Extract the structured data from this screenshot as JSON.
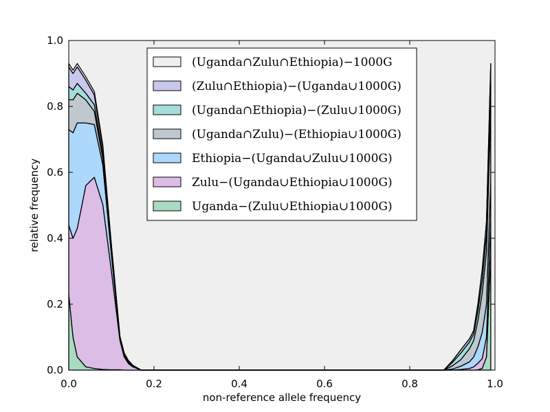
{
  "chart_data": {
    "type": "area",
    "stacked": true,
    "xlabel": "non-reference allele frequency",
    "ylabel": "relative frequency",
    "xlim": [
      0.0,
      1.0
    ],
    "ylim": [
      0.0,
      1.0
    ],
    "xticks": [
      "0.0",
      "0.2",
      "0.4",
      "0.6",
      "0.8",
      "1.0"
    ],
    "yticks": [
      "0.0",
      "0.2",
      "0.4",
      "0.6",
      "0.8",
      "1.0"
    ],
    "grid": false,
    "legend_position": "top-center",
    "background_color": "#efefef",
    "x": [
      0.0,
      0.01,
      0.02,
      0.04,
      0.06,
      0.08,
      0.1,
      0.12,
      0.13,
      0.14,
      0.15,
      0.17,
      0.2,
      0.3,
      0.4,
      0.6,
      0.8,
      0.85,
      0.88,
      0.9,
      0.92,
      0.94,
      0.95,
      0.96,
      0.97,
      0.98,
      0.99
    ],
    "series": [
      {
        "name": "Uganda−(Zulu∪Ethiopia∪1000G)",
        "color": "#a8dbbf",
        "values": [
          0.23,
          0.1,
          0.04,
          0.01,
          0.005,
          0.002,
          0.001,
          0.001,
          0.0,
          0.0,
          0.0,
          0.0,
          0.0,
          0.0,
          0.0,
          0.0,
          0.0,
          0.0,
          0.0,
          0.0,
          0.0,
          0.0,
          0.0,
          0.001,
          0.005,
          0.04,
          0.35
        ]
      },
      {
        "name": "Zulu−(Uganda∪Ethiopia∪1000G)",
        "color": "#dcbde6",
        "values": [
          0.21,
          0.3,
          0.39,
          0.55,
          0.58,
          0.5,
          0.3,
          0.09,
          0.04,
          0.02,
          0.01,
          0.0,
          0.0,
          0.0,
          0.0,
          0.0,
          0.0,
          0.0,
          0.0,
          0.0,
          0.002,
          0.005,
          0.01,
          0.02,
          0.03,
          0.06,
          0.1
        ]
      },
      {
        "name": "Ethiopia−(Uganda∪Zulu∪1000G)",
        "color": "#acd8fc",
        "values": [
          0.29,
          0.32,
          0.32,
          0.19,
          0.16,
          0.12,
          0.05,
          0.006,
          0.005,
          0.002,
          0.001,
          0.0,
          0.0,
          0.0,
          0.0,
          0.0,
          0.0,
          0.0,
          0.0,
          0.003,
          0.01,
          0.02,
          0.03,
          0.05,
          0.08,
          0.1,
          0.12
        ]
      },
      {
        "name": "(Uganda∩Zulu)−(Ethiopia∪1000G)",
        "color": "#c0c8cf",
        "values": [
          0.09,
          0.1,
          0.09,
          0.07,
          0.04,
          0.02,
          0.01,
          0.002,
          0.003,
          0.003,
          0.002,
          0.0,
          0.0,
          0.0,
          0.0,
          0.0,
          0.0,
          0.0,
          0.0,
          0.01,
          0.02,
          0.04,
          0.05,
          0.08,
          0.12,
          0.16,
          0.22
        ]
      },
      {
        "name": "(Uganda∩Ethiopia)−(Zulu∪1000G)",
        "color": "#a4dcdc",
        "values": [
          0.04,
          0.03,
          0.03,
          0.02,
          0.02,
          0.01,
          0.01,
          0.002,
          0.002,
          0.002,
          0.001,
          0.0,
          0.0,
          0.0,
          0.0,
          0.0,
          0.0,
          0.0,
          0.0,
          0.01,
          0.02,
          0.02,
          0.02,
          0.03,
          0.04,
          0.05,
          0.08
        ]
      },
      {
        "name": "(Zulu∩Ethiopia)−(Uganda∪1000G)",
        "color": "#c8c8ec",
        "values": [
          0.06,
          0.05,
          0.05,
          0.04,
          0.03,
          0.02,
          0.01,
          0.002,
          0.002,
          0.002,
          0.001,
          0.0,
          0.0,
          0.0,
          0.0,
          0.0,
          0.0,
          0.0,
          0.0,
          0.005,
          0.01,
          0.01,
          0.01,
          0.02,
          0.03,
          0.04,
          0.06
        ]
      },
      {
        "name": "(Uganda∩Zulu∩Ethiopia)−1000G",
        "color": "#efefef",
        "values": [
          0.01,
          0.01,
          0.01,
          0.01,
          0.01,
          0.01,
          0.0,
          0.0,
          0.0,
          0.0,
          0.0,
          0.0,
          0.0,
          0.0,
          0.0,
          0.0,
          0.0,
          0.0,
          0.0,
          0.0,
          0.0,
          0.0,
          0.0,
          0.0,
          0.0,
          0.0,
          0.0
        ]
      }
    ],
    "legend_order": [
      6,
      5,
      4,
      3,
      2,
      1,
      0
    ]
  }
}
